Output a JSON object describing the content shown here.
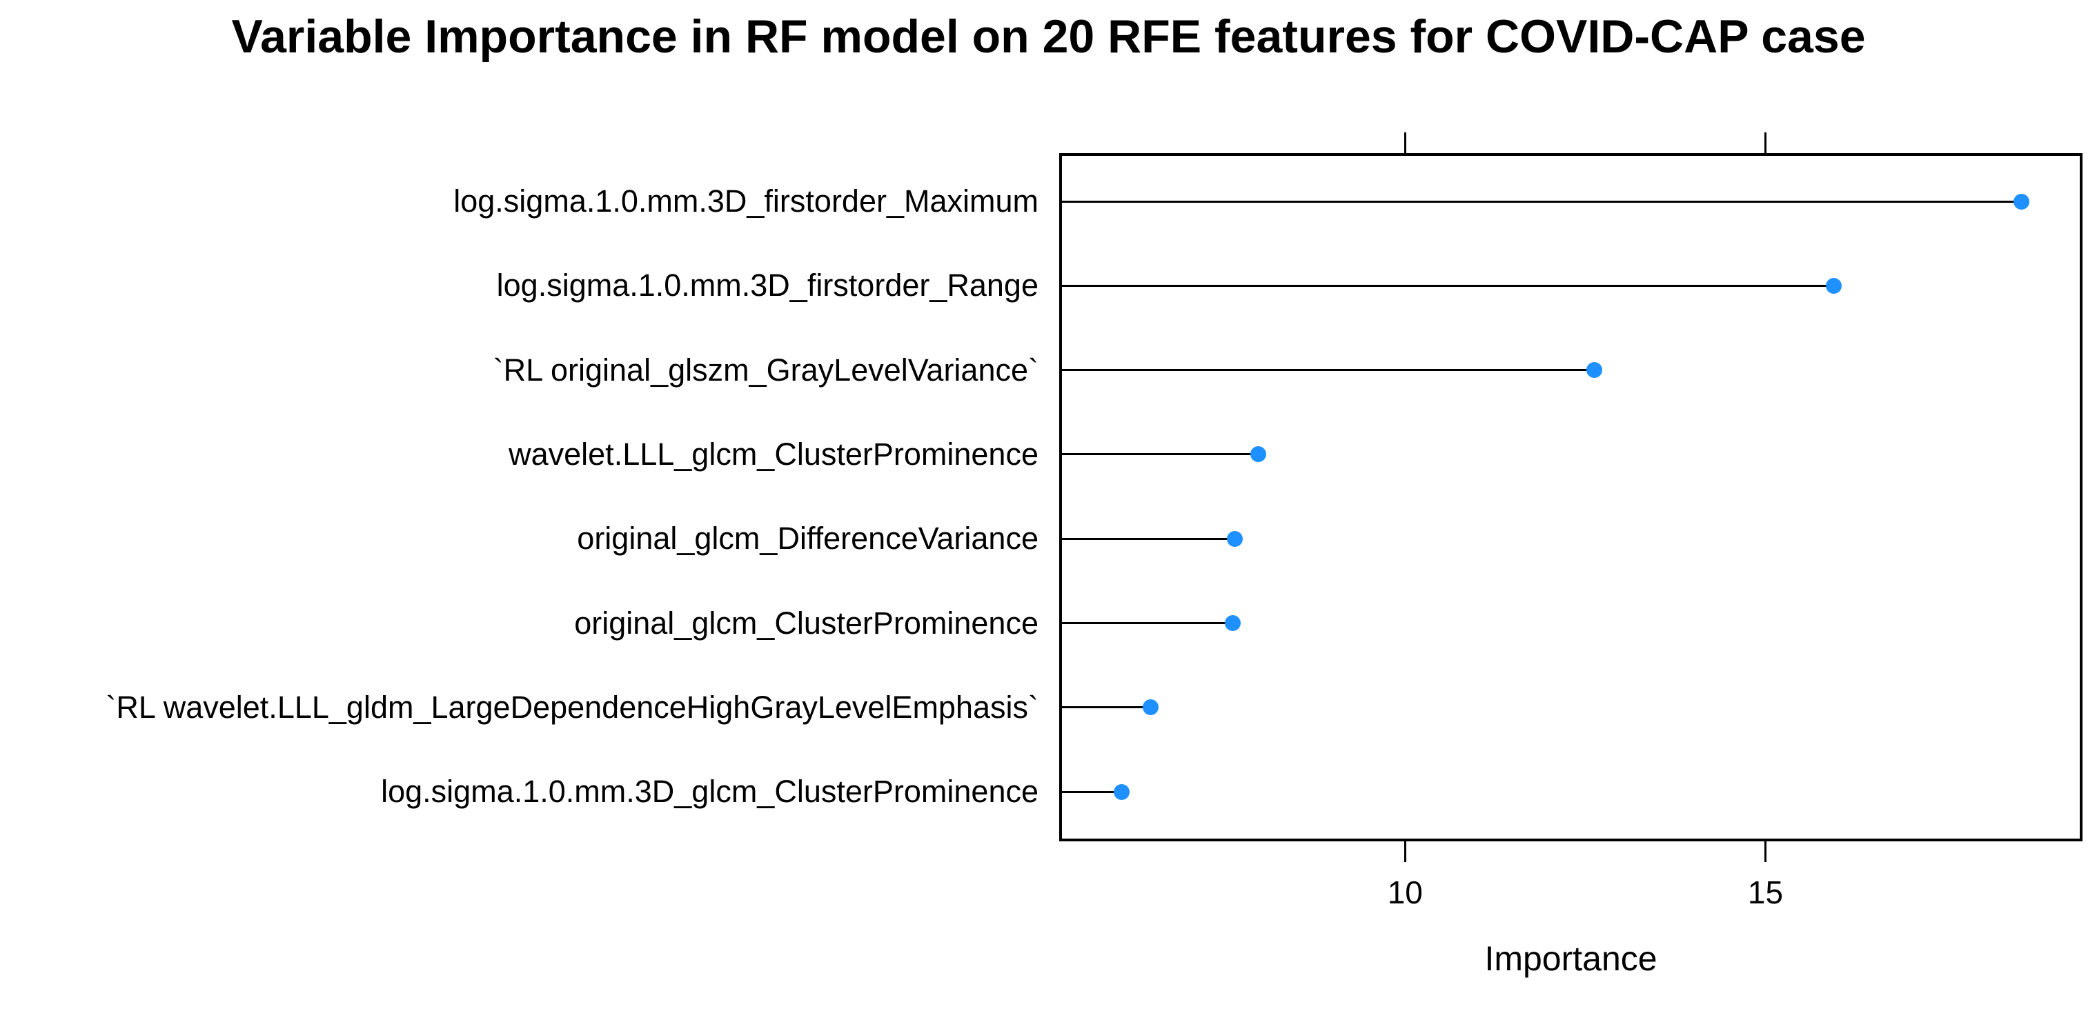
{
  "chart_data": {
    "type": "lollipop",
    "title": "Variable Importance in RF model on 20 RFE features for COVID-CAP case",
    "xlabel": "Importance",
    "ylabel": "",
    "categories": [
      "log.sigma.1.0.mm.3D_firstorder_Maximum",
      "log.sigma.1.0.mm.3D_firstorder_Range",
      "`RL original_glszm_GrayLevelVariance`",
      "wavelet.LLL_glcm_ClusterProminence",
      "original_glcm_DifferenceVariance",
      "original_glcm_ClusterProminence",
      "`RL wavelet.LLL_gldm_LargeDependenceHighGrayLevelEmphasis`",
      "log.sigma.1.0.mm.3D_glcm_ClusterProminence"
    ],
    "values": [
      18.55,
      15.95,
      12.63,
      7.96,
      7.64,
      7.61,
      6.47,
      6.07
    ],
    "xticks": [
      10,
      15
    ],
    "xlim": [
      5.2,
      19.4
    ],
    "grid": "off",
    "legend": "none",
    "orientation": "horizontal",
    "dot_color": "#1e90ff",
    "stem_color": "#000000",
    "axis_color": "#000000",
    "background_color": "#ffffff"
  }
}
